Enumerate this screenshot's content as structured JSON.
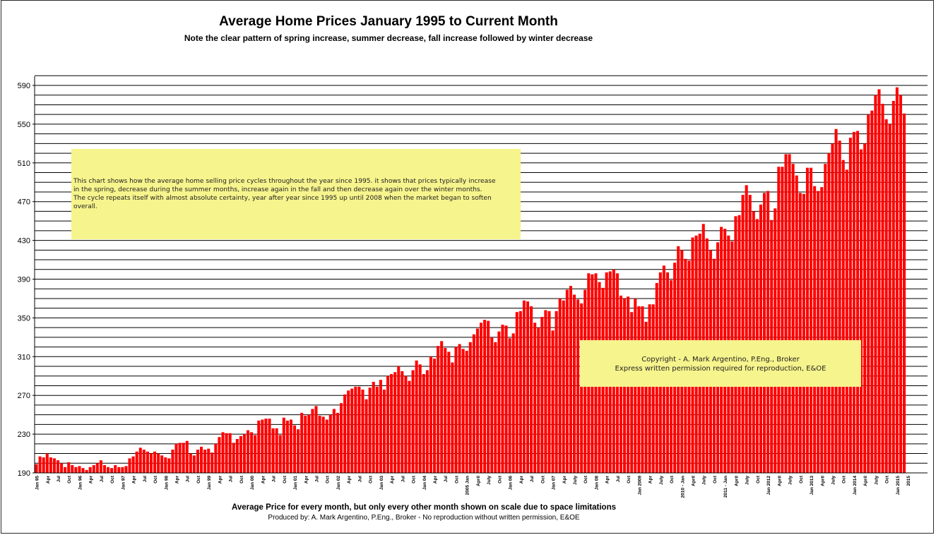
{
  "chart_data": {
    "type": "bar",
    "title": "Average Home Prices January 1995 to Current Month",
    "subtitle": "Note the clear pattern of spring increase, summer decrease, fall increase followed by winter decrease",
    "xlabel": "Average Price for every month, but only every other month shown on scale due to space limitations",
    "ylabel": "",
    "ylim": [
      190,
      590
    ],
    "yticks": [
      190,
      230,
      270,
      310,
      350,
      390,
      430,
      470,
      510,
      550,
      590
    ],
    "start": "Jan 1995",
    "grid": true,
    "bar_color": "#ff0000",
    "values": [
      199,
      207,
      206,
      210,
      206,
      205,
      203,
      200,
      196,
      201,
      198,
      196,
      197,
      195,
      193,
      196,
      198,
      200,
      203,
      198,
      196,
      195,
      198,
      196,
      196,
      197,
      205,
      207,
      212,
      216,
      214,
      212,
      210,
      212,
      210,
      208,
      206,
      205,
      214,
      220,
      221,
      221,
      223,
      210,
      208,
      214,
      217,
      214,
      215,
      211,
      220,
      227,
      232,
      231,
      231,
      221,
      225,
      228,
      230,
      234,
      232,
      229,
      244,
      245,
      246,
      246,
      236,
      236,
      229,
      247,
      244,
      245,
      239,
      235,
      252,
      249,
      250,
      256,
      259,
      249,
      248,
      245,
      250,
      256,
      252,
      262,
      271,
      275,
      277,
      279,
      279,
      276,
      266,
      278,
      284,
      279,
      286,
      276,
      290,
      292,
      294,
      300,
      295,
      290,
      285,
      296,
      306,
      302,
      292,
      296,
      310,
      308,
      321,
      326,
      319,
      315,
      304,
      320,
      323,
      318,
      316,
      325,
      333,
      339,
      345,
      348,
      347,
      330,
      325,
      336,
      343,
      342,
      329,
      334,
      356,
      357,
      368,
      367,
      362,
      345,
      340,
      351,
      358,
      357,
      337,
      357,
      370,
      368,
      379,
      383,
      374,
      369,
      365,
      379,
      396,
      395,
      396,
      387,
      381,
      397,
      398,
      400,
      396,
      373,
      370,
      372,
      356,
      370,
      362,
      362,
      346,
      364,
      364,
      386,
      397,
      404,
      397,
      389,
      407,
      424,
      420,
      411,
      409,
      433,
      435,
      437,
      447,
      432,
      420,
      411,
      428,
      444,
      442,
      435,
      429,
      455,
      456,
      477,
      487,
      477,
      460,
      452,
      467,
      479,
      481,
      451,
      463,
      506,
      506,
      519,
      519,
      509,
      497,
      479,
      478,
      505,
      505,
      486,
      481,
      485,
      509,
      520,
      530,
      545,
      533,
      513,
      503,
      536,
      542,
      543,
      524,
      530,
      560,
      564,
      580,
      586,
      571,
      555,
      550,
      574,
      588,
      580,
      561
    ],
    "x_tick_labels": [
      "Jan 95",
      "Apr",
      "Jul",
      "Oct",
      "Jan 96",
      "Apr",
      "Jul",
      "Oct",
      "Jan 97",
      "Apr",
      "Jul",
      "Oct",
      "Jan 98",
      "Apr",
      "Jul",
      "Oct",
      "Jan 99",
      "Apr",
      "Jul",
      "Oct",
      "Jan 00",
      "Apr",
      "Jul",
      "Oct",
      "Jan 01",
      "Apr",
      "Jul",
      "Oct",
      "Jan 02",
      "Apr",
      "Jul",
      "Oct",
      "Jan 03",
      "Apr",
      "Jul",
      "Oct",
      "Jan 04",
      "Apr",
      "Jul",
      "Oct",
      "2005 Jan",
      "April",
      "July",
      "Oct",
      "Jan 06",
      "Apr",
      "Jul",
      "Oct",
      "Jan 07",
      "Apr",
      "July",
      "Oct",
      "Jan 08",
      "Apr",
      "Jul",
      "Oct",
      "Jan 2009",
      "Apr",
      "July",
      "Oct",
      "2010 - Jan",
      "April",
      "July",
      "Oct",
      "2011 - Jan",
      "April",
      "July",
      "Oct",
      "Jan 2012",
      "April",
      "July",
      "Oct",
      "Jan 2013",
      "April",
      "July",
      "Oct",
      "Jan 2014",
      "April",
      "July",
      "Oct",
      "Jan 2015",
      "2015"
    ]
  },
  "notes": {
    "description_lines": [
      "This chart shows how the average home selling price cycles throughout the year since 1995.  it shows that prices typically increase",
      "in the spring, decrease during the summer months, increase again in the fall and then decrease again over the winter months.",
      "The cycle repeats itself with almost absolute certainty, year after year since 1995 up until 2008 when the market began to soften",
      "overall."
    ],
    "copyright_line1": "Copyright - A. Mark Argentino, P.Eng., Broker",
    "copyright_line2": "Express written permission required for reproduction, E&OE"
  },
  "producer": "Produced by: A. Mark Argentino, P.Eng., Broker - No reproduction without written permission, E&OE"
}
